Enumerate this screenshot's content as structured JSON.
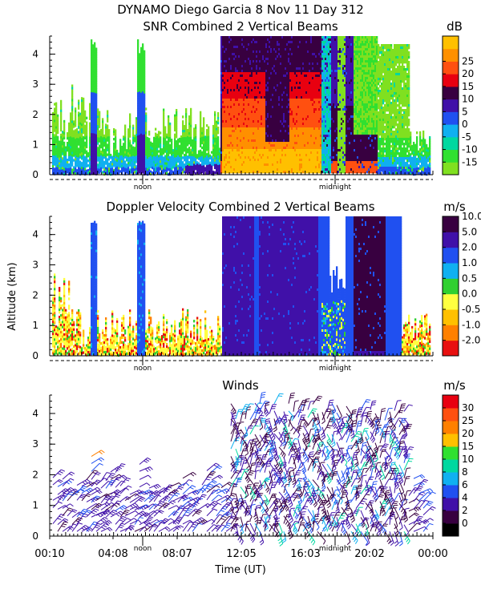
{
  "header": {
    "title_line1": "DYNAMO Diego Garcia    8 Nov 11 Day 312"
  },
  "y_axis_label": "Altitude (km)",
  "x_axis_label": "Time (UT)",
  "chart_data": [
    {
      "type": "heatmap",
      "title": "SNR Combined 2 Vertical Beams",
      "units": "dB",
      "xlabel": "",
      "ylabel": "Altitude (km)",
      "ylim": [
        0,
        4.6
      ],
      "yticks": [
        0,
        1,
        2,
        3,
        4
      ],
      "x_markers": [
        "noon",
        "midnight"
      ],
      "colorbar": {
        "labels": [
          "-15",
          "-10",
          "-5",
          "0",
          "5",
          "10",
          "15",
          "20",
          "25"
        ],
        "colors": [
          "#80e020",
          "#30e030",
          "#00d8a0",
          "#10b0f0",
          "#2050f0",
          "#4010a8",
          "#380040",
          "#e80010",
          "#ff5010",
          "#ff9000",
          "#ffc000"
        ]
      }
    },
    {
      "type": "heatmap",
      "title": "Doppler Velocity Combined 2 Vertical Beams",
      "units": "m/s",
      "xlabel": "",
      "ylabel": "Altitude (km)",
      "ylim": [
        0,
        4.6
      ],
      "yticks": [
        0,
        1,
        2,
        3,
        4
      ],
      "x_markers": [
        "noon",
        "midnight"
      ],
      "colorbar": {
        "labels": [
          "-2.0",
          "-1.0",
          "-0.5",
          "0.0",
          "0.5",
          "1.0",
          "2.0",
          "5.0",
          "10.0"
        ],
        "colors": [
          "#e81010",
          "#ff8000",
          "#ffc000",
          "#ffff40",
          "#30d030",
          "#10b0f0",
          "#2050f0",
          "#4010a8",
          "#380040"
        ]
      }
    },
    {
      "type": "scatter",
      "title": "Winds",
      "units": "m/s",
      "xlabel": "Time (UT)",
      "ylabel": "Altitude (km)",
      "ylim": [
        0,
        4.6
      ],
      "yticks": [
        0,
        1,
        2,
        3,
        4
      ],
      "x_markers": [
        "noon",
        "midnight"
      ],
      "x_ticklabels": [
        "00:10",
        "04:08",
        "08:07",
        "12:05",
        "16:03",
        "20:02",
        "00:00"
      ],
      "colorbar": {
        "labels": [
          "0",
          "2",
          "4",
          "6",
          "8",
          "10",
          "15",
          "20",
          "25",
          "30"
        ],
        "colors": [
          "#000000",
          "#380040",
          "#4010a8",
          "#2050f0",
          "#10b0f0",
          "#00d8a0",
          "#30e030",
          "#ffc000",
          "#ff8000",
          "#ff5010",
          "#e80010"
        ]
      }
    }
  ]
}
